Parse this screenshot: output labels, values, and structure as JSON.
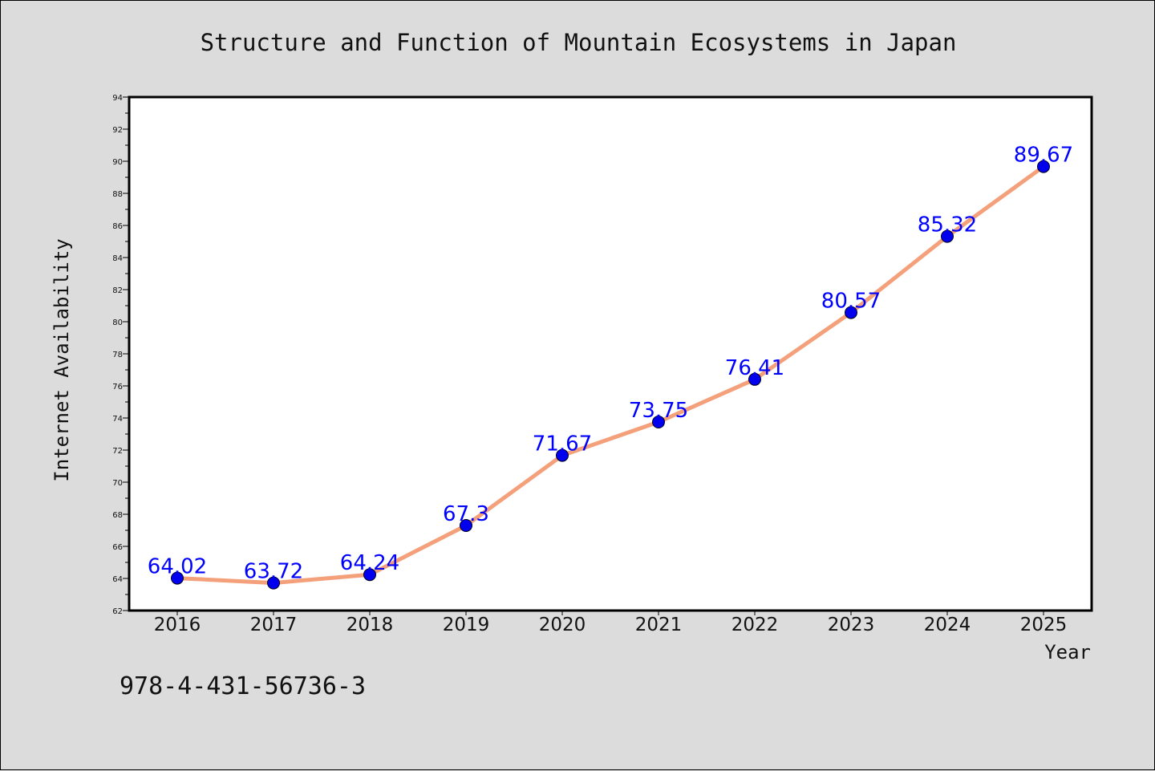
{
  "page": {
    "footer_code": "978-4-431-56736-3"
  },
  "colors": {
    "background": "#dcdcdc",
    "plot_background": "#ffffff",
    "line": "#f4a07a",
    "marker": "#0000ee",
    "data_label": "#0000ff"
  },
  "chart_data": {
    "type": "line",
    "title": "Structure and Function of Mountain Ecosystems in Japan",
    "xlabel": "Year",
    "ylabel": "Internet Availability",
    "categories": [
      "2016",
      "2017",
      "2018",
      "2019",
      "2020",
      "2021",
      "2022",
      "2023",
      "2024",
      "2025"
    ],
    "series": [
      {
        "values": [
          64.02,
          63.72,
          64.24,
          67.3,
          71.67,
          73.75,
          76.41,
          80.57,
          85.32,
          89.67
        ],
        "labels": [
          "64.02",
          "63.72",
          "64.24",
          "67.3",
          "71.67",
          "73.75",
          "76.41",
          "80.57",
          "85.32",
          "89.67"
        ]
      }
    ],
    "ylim": [
      62,
      94
    ],
    "yticks": [
      "62",
      "64",
      "66",
      "68",
      "70",
      "72",
      "74",
      "76",
      "78",
      "80",
      "82",
      "84",
      "86",
      "88",
      "90",
      "92",
      "94"
    ],
    "grid": false,
    "legend": "none"
  }
}
